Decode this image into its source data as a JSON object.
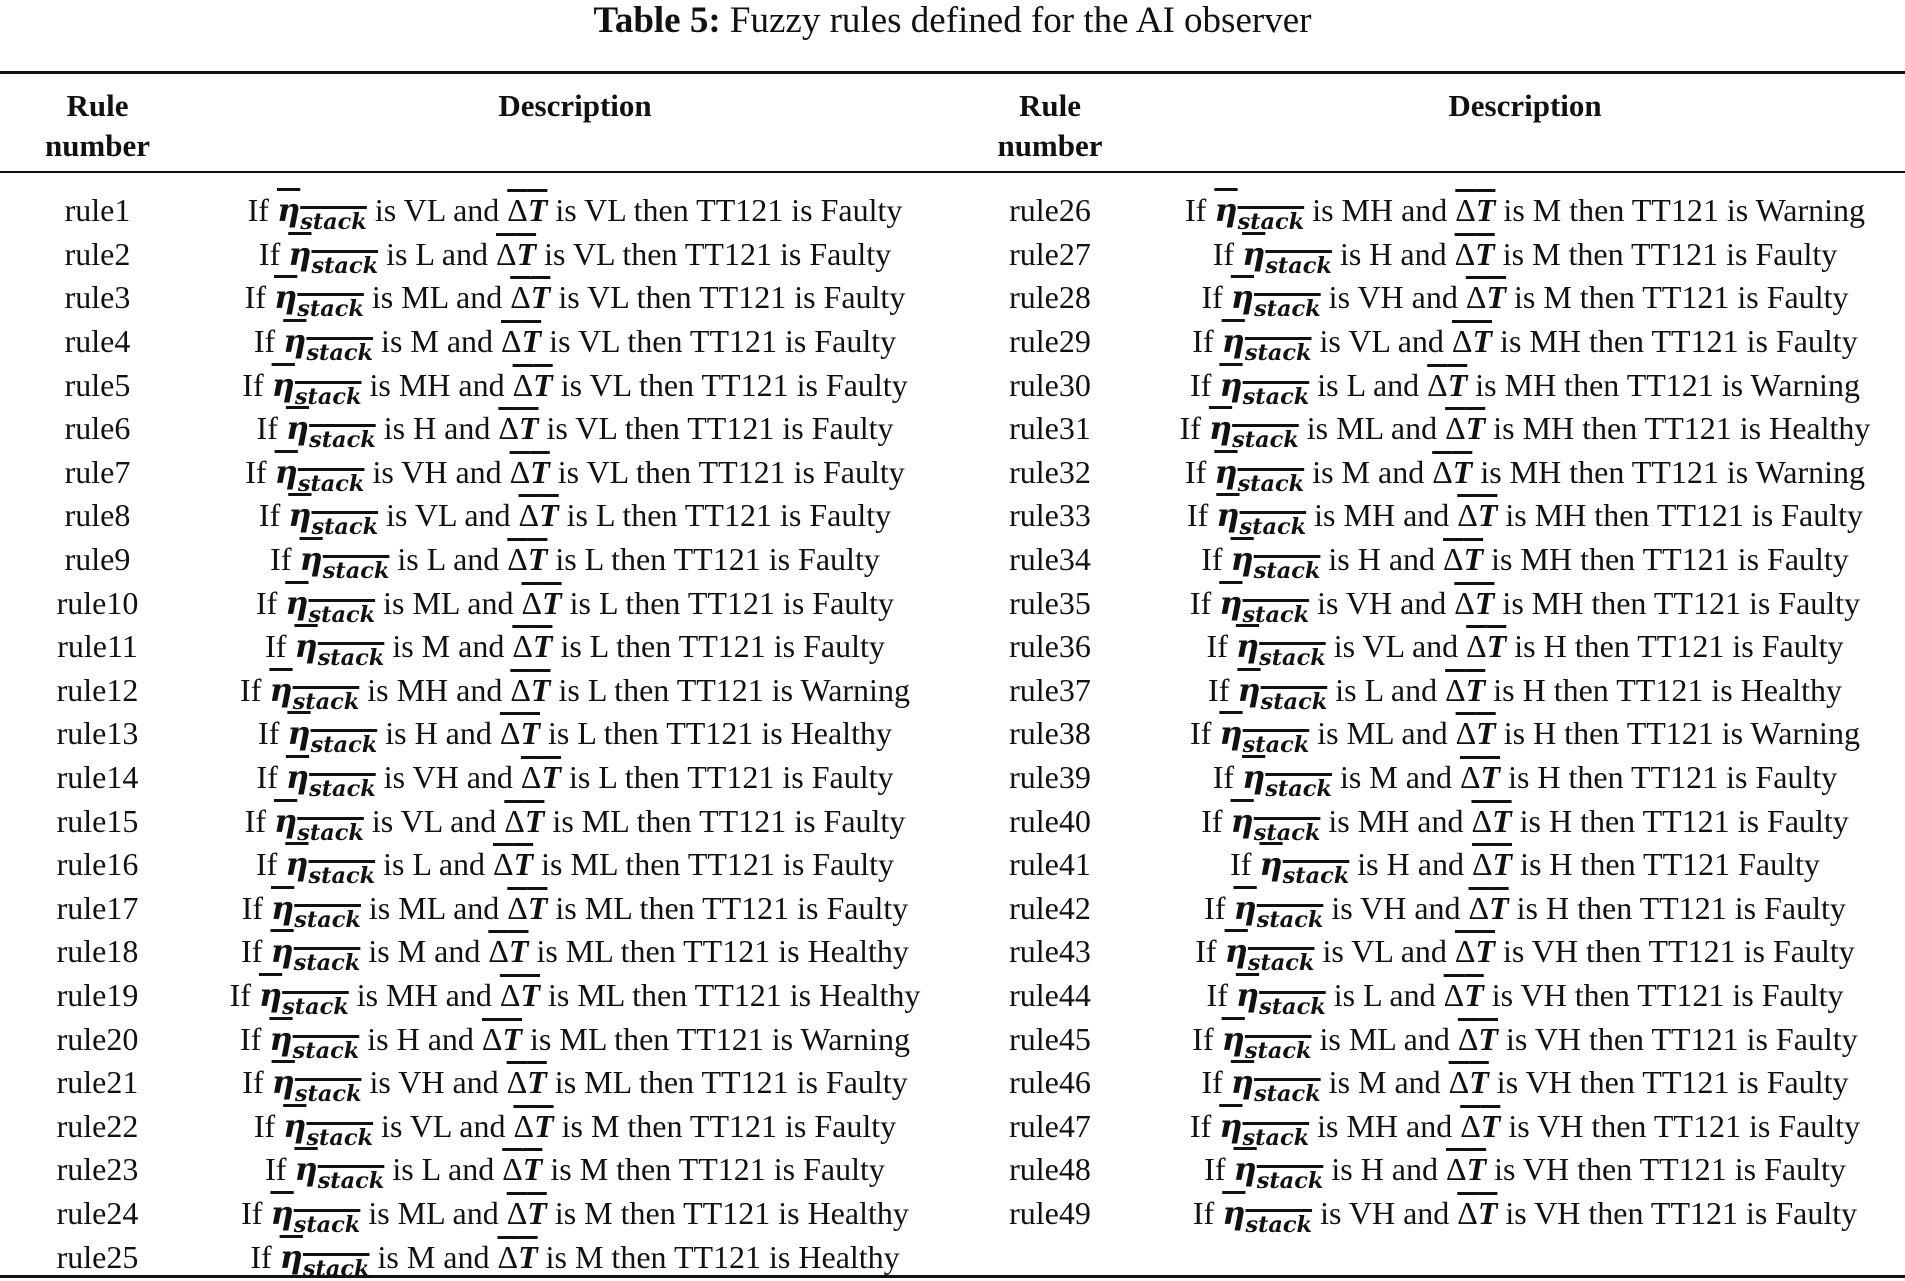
{
  "caption": {
    "label": "Table 5:",
    "text": "Fuzzy rules defined for the AI observer"
  },
  "headers": {
    "rule_number_line1": "Rule",
    "rule_number_line2": "number",
    "description": "Description"
  },
  "symbols": {
    "eta": "η",
    "eta_sub": "stack",
    "delta": "Δ",
    "t": "T"
  },
  "rules": [
    {
      "num": "rule1",
      "eta": "VL",
      "dt": "VL",
      "result": "then TT121 is Faulty"
    },
    {
      "num": "rule2",
      "eta": "L",
      "dt": "VL",
      "result": "then TT121 is Faulty"
    },
    {
      "num": "rule3",
      "eta": "ML",
      "dt": "VL",
      "result": "then TT121 is Faulty"
    },
    {
      "num": "rule4",
      "eta": "M",
      "dt": "VL",
      "result": "then TT121 is Faulty"
    },
    {
      "num": "rule5",
      "eta": "MH",
      "dt": "VL",
      "result": "then TT121 is Faulty"
    },
    {
      "num": "rule6",
      "eta": "H",
      "dt": "VL",
      "result": "then TT121 is Faulty"
    },
    {
      "num": "rule7",
      "eta": "VH",
      "dt": "VL",
      "result": "then TT121 is Faulty"
    },
    {
      "num": "rule8",
      "eta": "VL",
      "dt": "L",
      "result": "then TT121 is Faulty"
    },
    {
      "num": "rule9",
      "eta": "L",
      "dt": "L",
      "result": "then TT121 is Faulty"
    },
    {
      "num": "rule10",
      "eta": "ML",
      "dt": "L",
      "result": "then TT121 is Faulty"
    },
    {
      "num": "rule11",
      "eta": "M",
      "dt": "L",
      "result": "then TT121 is Faulty"
    },
    {
      "num": "rule12",
      "eta": "MH",
      "dt": "L",
      "result": "then TT121 is Warning"
    },
    {
      "num": "rule13",
      "eta": "H",
      "dt": "L",
      "result": "then TT121 is Healthy"
    },
    {
      "num": "rule14",
      "eta": "VH",
      "dt": "L",
      "result": "then TT121 is Faulty"
    },
    {
      "num": "rule15",
      "eta": "VL",
      "dt": "ML",
      "result": "then TT121 is Faulty"
    },
    {
      "num": "rule16",
      "eta": "L",
      "dt": "ML",
      "result": "then TT121 is Faulty"
    },
    {
      "num": "rule17",
      "eta": "ML",
      "dt": "ML",
      "result": "then TT121 is Faulty"
    },
    {
      "num": "rule18",
      "eta": "M",
      "dt": "ML",
      "result": "then TT121 is Healthy"
    },
    {
      "num": "rule19",
      "eta": "MH",
      "dt": "ML",
      "result": "then TT121 is Healthy"
    },
    {
      "num": "rule20",
      "eta": "H",
      "dt": "ML",
      "result": "then TT121 is Warning"
    },
    {
      "num": "rule21",
      "eta": "VH",
      "dt": "ML",
      "result": "then TT121 is Faulty"
    },
    {
      "num": "rule22",
      "eta": "VL",
      "dt": "M",
      "result": "then TT121 is Faulty"
    },
    {
      "num": "rule23",
      "eta": "L",
      "dt": "M",
      "result": "then TT121 is Faulty"
    },
    {
      "num": "rule24",
      "eta": "ML",
      "dt": "M",
      "result": "then TT121 is Healthy"
    },
    {
      "num": "rule25",
      "eta": "M",
      "dt": "M",
      "result": "then TT121 is Healthy"
    },
    {
      "num": "rule26",
      "eta": "MH",
      "dt": "M",
      "result": "then TT121 is Warning"
    },
    {
      "num": "rule27",
      "eta": "H",
      "dt": "M",
      "result": "then TT121 is Faulty"
    },
    {
      "num": "rule28",
      "eta": "VH",
      "dt": "M",
      "result": "then TT121 is Faulty"
    },
    {
      "num": "rule29",
      "eta": "VL",
      "dt": "MH",
      "result": "then TT121 is Faulty"
    },
    {
      "num": "rule30",
      "eta": "L",
      "dt": "MH",
      "result": "then TT121 is Warning"
    },
    {
      "num": "rule31",
      "eta": "ML",
      "dt": "MH",
      "result": "then TT121 is Healthy"
    },
    {
      "num": "rule32",
      "eta": "M",
      "dt": "MH",
      "result": "then TT121 is Warning"
    },
    {
      "num": "rule33",
      "eta": "MH",
      "dt": "MH",
      "result": "then TT121 is Faulty"
    },
    {
      "num": "rule34",
      "eta": "H",
      "dt": "MH",
      "result": "then TT121 is Faulty"
    },
    {
      "num": "rule35",
      "eta": "VH",
      "dt": "MH",
      "result": "then TT121 is Faulty"
    },
    {
      "num": "rule36",
      "eta": "VL",
      "dt": "H",
      "result": "then TT121 is Faulty"
    },
    {
      "num": "rule37",
      "eta": "L",
      "dt": "H",
      "result": "then TT121 is Healthy"
    },
    {
      "num": "rule38",
      "eta": "ML",
      "dt": "H",
      "result": "then TT121 is Warning"
    },
    {
      "num": "rule39",
      "eta": "M",
      "dt": "H",
      "result": "then TT121 is Faulty"
    },
    {
      "num": "rule40",
      "eta": "MH",
      "dt": "H",
      "result": "then TT121 is Faulty"
    },
    {
      "num": "rule41",
      "eta": "H",
      "dt": "H",
      "result": "then TT121 Faulty"
    },
    {
      "num": "rule42",
      "eta": "VH",
      "dt": "H",
      "result": "then TT121 is Faulty"
    },
    {
      "num": "rule43",
      "eta": "VL",
      "dt": "VH",
      "result": "then TT121 is Faulty"
    },
    {
      "num": "rule44",
      "eta": "L",
      "dt": "VH",
      "result": "then TT121 is Faulty"
    },
    {
      "num": "rule45",
      "eta": "ML",
      "dt": "VH",
      "result": "then TT121 is Faulty"
    },
    {
      "num": "rule46",
      "eta": "M",
      "dt": "VH",
      "result": "then TT121 is Faulty"
    },
    {
      "num": "rule47",
      "eta": "MH",
      "dt": "VH",
      "result": "then TT121 is Faulty"
    },
    {
      "num": "rule48",
      "eta": "H",
      "dt": "VH",
      "result": "then TT121 is Faulty"
    },
    {
      "num": "rule49",
      "eta": "VH",
      "dt": "VH",
      "result": "then TT121 is Faulty"
    }
  ]
}
